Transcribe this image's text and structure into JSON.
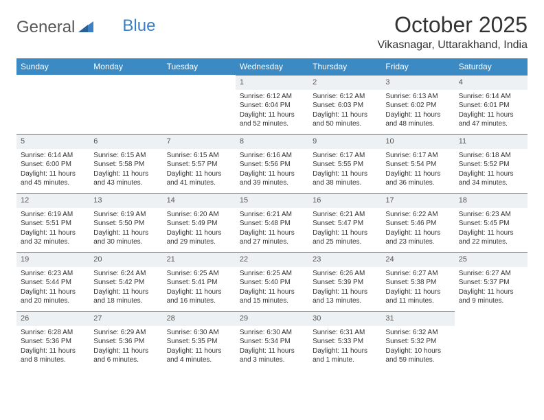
{
  "logo": {
    "text1": "General",
    "text2": "Blue"
  },
  "title": "October 2025",
  "location": "Vikasnagar, Uttarakhand, India",
  "colors": {
    "header_bg": "#3b8ac4",
    "header_text": "#ffffff",
    "daynum_bg": "#eef1f3",
    "row_border": "#3b7fa8",
    "text": "#333333",
    "logo_gray": "#666666",
    "logo_blue": "#3b7fc4"
  },
  "weekdays": [
    "Sunday",
    "Monday",
    "Tuesday",
    "Wednesday",
    "Thursday",
    "Friday",
    "Saturday"
  ],
  "weeks": [
    [
      null,
      null,
      null,
      {
        "n": "1",
        "sr": "Sunrise: 6:12 AM",
        "ss": "Sunset: 6:04 PM",
        "dl": "Daylight: 11 hours and 52 minutes."
      },
      {
        "n": "2",
        "sr": "Sunrise: 6:12 AM",
        "ss": "Sunset: 6:03 PM",
        "dl": "Daylight: 11 hours and 50 minutes."
      },
      {
        "n": "3",
        "sr": "Sunrise: 6:13 AM",
        "ss": "Sunset: 6:02 PM",
        "dl": "Daylight: 11 hours and 48 minutes."
      },
      {
        "n": "4",
        "sr": "Sunrise: 6:14 AM",
        "ss": "Sunset: 6:01 PM",
        "dl": "Daylight: 11 hours and 47 minutes."
      }
    ],
    [
      {
        "n": "5",
        "sr": "Sunrise: 6:14 AM",
        "ss": "Sunset: 6:00 PM",
        "dl": "Daylight: 11 hours and 45 minutes."
      },
      {
        "n": "6",
        "sr": "Sunrise: 6:15 AM",
        "ss": "Sunset: 5:58 PM",
        "dl": "Daylight: 11 hours and 43 minutes."
      },
      {
        "n": "7",
        "sr": "Sunrise: 6:15 AM",
        "ss": "Sunset: 5:57 PM",
        "dl": "Daylight: 11 hours and 41 minutes."
      },
      {
        "n": "8",
        "sr": "Sunrise: 6:16 AM",
        "ss": "Sunset: 5:56 PM",
        "dl": "Daylight: 11 hours and 39 minutes."
      },
      {
        "n": "9",
        "sr": "Sunrise: 6:17 AM",
        "ss": "Sunset: 5:55 PM",
        "dl": "Daylight: 11 hours and 38 minutes."
      },
      {
        "n": "10",
        "sr": "Sunrise: 6:17 AM",
        "ss": "Sunset: 5:54 PM",
        "dl": "Daylight: 11 hours and 36 minutes."
      },
      {
        "n": "11",
        "sr": "Sunrise: 6:18 AM",
        "ss": "Sunset: 5:52 PM",
        "dl": "Daylight: 11 hours and 34 minutes."
      }
    ],
    [
      {
        "n": "12",
        "sr": "Sunrise: 6:19 AM",
        "ss": "Sunset: 5:51 PM",
        "dl": "Daylight: 11 hours and 32 minutes."
      },
      {
        "n": "13",
        "sr": "Sunrise: 6:19 AM",
        "ss": "Sunset: 5:50 PM",
        "dl": "Daylight: 11 hours and 30 minutes."
      },
      {
        "n": "14",
        "sr": "Sunrise: 6:20 AM",
        "ss": "Sunset: 5:49 PM",
        "dl": "Daylight: 11 hours and 29 minutes."
      },
      {
        "n": "15",
        "sr": "Sunrise: 6:21 AM",
        "ss": "Sunset: 5:48 PM",
        "dl": "Daylight: 11 hours and 27 minutes."
      },
      {
        "n": "16",
        "sr": "Sunrise: 6:21 AM",
        "ss": "Sunset: 5:47 PM",
        "dl": "Daylight: 11 hours and 25 minutes."
      },
      {
        "n": "17",
        "sr": "Sunrise: 6:22 AM",
        "ss": "Sunset: 5:46 PM",
        "dl": "Daylight: 11 hours and 23 minutes."
      },
      {
        "n": "18",
        "sr": "Sunrise: 6:23 AM",
        "ss": "Sunset: 5:45 PM",
        "dl": "Daylight: 11 hours and 22 minutes."
      }
    ],
    [
      {
        "n": "19",
        "sr": "Sunrise: 6:23 AM",
        "ss": "Sunset: 5:44 PM",
        "dl": "Daylight: 11 hours and 20 minutes."
      },
      {
        "n": "20",
        "sr": "Sunrise: 6:24 AM",
        "ss": "Sunset: 5:42 PM",
        "dl": "Daylight: 11 hours and 18 minutes."
      },
      {
        "n": "21",
        "sr": "Sunrise: 6:25 AM",
        "ss": "Sunset: 5:41 PM",
        "dl": "Daylight: 11 hours and 16 minutes."
      },
      {
        "n": "22",
        "sr": "Sunrise: 6:25 AM",
        "ss": "Sunset: 5:40 PM",
        "dl": "Daylight: 11 hours and 15 minutes."
      },
      {
        "n": "23",
        "sr": "Sunrise: 6:26 AM",
        "ss": "Sunset: 5:39 PM",
        "dl": "Daylight: 11 hours and 13 minutes."
      },
      {
        "n": "24",
        "sr": "Sunrise: 6:27 AM",
        "ss": "Sunset: 5:38 PM",
        "dl": "Daylight: 11 hours and 11 minutes."
      },
      {
        "n": "25",
        "sr": "Sunrise: 6:27 AM",
        "ss": "Sunset: 5:37 PM",
        "dl": "Daylight: 11 hours and 9 minutes."
      }
    ],
    [
      {
        "n": "26",
        "sr": "Sunrise: 6:28 AM",
        "ss": "Sunset: 5:36 PM",
        "dl": "Daylight: 11 hours and 8 minutes."
      },
      {
        "n": "27",
        "sr": "Sunrise: 6:29 AM",
        "ss": "Sunset: 5:36 PM",
        "dl": "Daylight: 11 hours and 6 minutes."
      },
      {
        "n": "28",
        "sr": "Sunrise: 6:30 AM",
        "ss": "Sunset: 5:35 PM",
        "dl": "Daylight: 11 hours and 4 minutes."
      },
      {
        "n": "29",
        "sr": "Sunrise: 6:30 AM",
        "ss": "Sunset: 5:34 PM",
        "dl": "Daylight: 11 hours and 3 minutes."
      },
      {
        "n": "30",
        "sr": "Sunrise: 6:31 AM",
        "ss": "Sunset: 5:33 PM",
        "dl": "Daylight: 11 hours and 1 minute."
      },
      {
        "n": "31",
        "sr": "Sunrise: 6:32 AM",
        "ss": "Sunset: 5:32 PM",
        "dl": "Daylight: 10 hours and 59 minutes."
      },
      null
    ]
  ]
}
